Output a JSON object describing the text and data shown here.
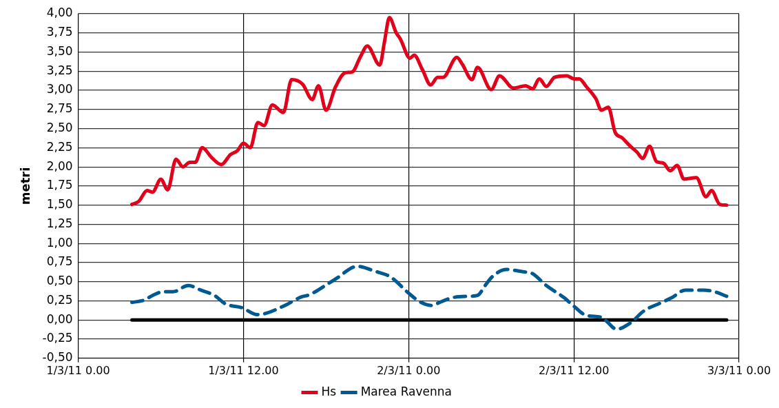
{
  "chart_data": {
    "type": "line",
    "ylabel": "metri",
    "xlim": [
      "--03-01T00:00",
      "--03-03T00:00"
    ],
    "xticks": [
      {
        "value": "--03-01T00:00",
        "label": "1/3/11 0.00"
      },
      {
        "value": "--03-01T12:00",
        "label": "1/3/11 12.00"
      },
      {
        "value": "--03-02T00:00",
        "label": "2/3/11 0.00"
      },
      {
        "value": "--03-02T12:00",
        "label": "2/3/11 12.00"
      },
      {
        "value": "--03-03T00:00",
        "label": "3/3/11 0.00"
      }
    ],
    "ylim": [
      -0.5,
      4
    ],
    "yticks": [
      {
        "value": -0.5,
        "label": "-0,50"
      },
      {
        "value": -0.25,
        "label": "-0,25"
      },
      {
        "value": 0,
        "label": "0,00"
      },
      {
        "value": 0.25,
        "label": "0,25"
      },
      {
        "value": 0.5,
        "label": "0,50"
      },
      {
        "value": 0.75,
        "label": "0,75"
      },
      {
        "value": 1,
        "label": "1,00"
      },
      {
        "value": 1.25,
        "label": "1,25"
      },
      {
        "value": 1.5,
        "label": "1,50"
      },
      {
        "value": 1.75,
        "label": "1,75"
      },
      {
        "value": 2,
        "label": "2,00"
      },
      {
        "value": 2.25,
        "label": "2,25"
      },
      {
        "value": 2.5,
        "label": "2,50"
      },
      {
        "value": 2.75,
        "label": "2,75"
      },
      {
        "value": 3,
        "label": "3,00"
      },
      {
        "value": 3.25,
        "label": "3,25"
      },
      {
        "value": 3.5,
        "label": "3,50"
      },
      {
        "value": 3.75,
        "label": "3,75"
      },
      {
        "value": 4,
        "label": "4,00"
      }
    ],
    "grid": true,
    "legend": "bottom",
    "marker": "none",
    "series": [
      {
        "name": "Hs",
        "color": "#e2001a",
        "line_style": "solid",
        "x": [
          "--03-01T03:54",
          "--03-01T04:24",
          "--03-01T05:00",
          "--03-01T05:24",
          "--03-01T06:00",
          "--03-01T06:30",
          "--03-01T07:06",
          "--03-01T07:36",
          "--03-01T08:06",
          "--03-01T08:30",
          "--03-01T09:00",
          "--03-01T09:42",
          "--03-01T10:24",
          "--03-01T11:03",
          "--03-01T11:33",
          "--03-01T12:00",
          "--03-01T12:30",
          "--03-01T13:03",
          "--03-01T13:30",
          "--03-01T14:06",
          "--03-01T14:54",
          "--03-01T15:30",
          "--03-01T16:18",
          "--03-01T17:00",
          "--03-01T17:27",
          "--03-01T18:00",
          "--03-01T18:42",
          "--03-01T19:24",
          "--03-01T19:54",
          "--03-01T20:30",
          "--03-01T21:00",
          "--03-01T21:54",
          "--03-01T22:15",
          "--03-01T22:36",
          "--03-01T23:06",
          "--03-01T23:24",
          "--03-02T00:06",
          "--03-02T00:24",
          "--03-02T01:00",
          "--03-02T01:36",
          "--03-02T02:06",
          "--03-02T02:30",
          "--03-02T03:30",
          "--03-02T03:54",
          "--03-02T04:36",
          "--03-02T05:00",
          "--03-02T06:00",
          "--03-02T06:36",
          "--03-02T07:36",
          "--03-02T08:30",
          "--03-02T09:00",
          "--03-02T09:30",
          "--03-02T10:00",
          "--03-02T10:36",
          "--03-02T11:30",
          "--03-02T12:00",
          "--03-02T12:24",
          "--03-02T12:54",
          "--03-02T13:36",
          "--03-02T14:00",
          "--03-02T14:30",
          "--03-02T15:00",
          "--03-02T15:30",
          "--03-02T16:06",
          "--03-02T16:36",
          "--03-02T17:00",
          "--03-02T17:30",
          "--03-02T18:00",
          "--03-02T18:30",
          "--03-02T19:00",
          "--03-02T19:30",
          "--03-02T20:00",
          "--03-02T20:54",
          "--03-02T21:36",
          "--03-02T22:00",
          "--03-02T22:36",
          "--03-02T23:06"
        ],
        "values": [
          1.51,
          1.55,
          1.69,
          1.67,
          1.84,
          1.7,
          2.1,
          2.0,
          2.06,
          2.06,
          2.25,
          2.12,
          2.03,
          2.16,
          2.21,
          2.31,
          2.25,
          2.58,
          2.54,
          2.81,
          2.71,
          3.14,
          3.08,
          2.88,
          3.06,
          2.74,
          3.05,
          3.23,
          3.24,
          3.44,
          3.58,
          3.33,
          3.64,
          3.95,
          3.75,
          3.67,
          3.42,
          3.46,
          3.27,
          3.07,
          3.17,
          3.17,
          3.43,
          3.34,
          3.14,
          3.3,
          3.01,
          3.19,
          3.03,
          3.06,
          3.02,
          3.15,
          3.05,
          3.17,
          3.19,
          3.15,
          3.15,
          3.05,
          2.89,
          2.74,
          2.78,
          2.45,
          2.38,
          2.27,
          2.19,
          2.11,
          2.27,
          2.07,
          2.05,
          1.95,
          2.02,
          1.84,
          1.86,
          1.61,
          1.69,
          1.51,
          1.5
        ]
      },
      {
        "name": "Marea Ravenna",
        "color": "#005a91",
        "line_style": "dashed",
        "x": [
          "--03-01T03:54",
          "--03-01T04:48",
          "--03-01T05:24",
          "--03-01T06:12",
          "--03-01T06:54",
          "--03-01T08:00",
          "--03-01T08:54",
          "--03-01T09:54",
          "--03-01T10:42",
          "--03-01T11:54",
          "--03-01T13:00",
          "--03-01T13:30",
          "--03-01T14:54",
          "--03-01T16:12",
          "--03-01T16:48",
          "--03-01T18:12",
          "--03-01T18:54",
          "--03-01T19:51",
          "--03-01T20:18",
          "--03-01T21:30",
          "--03-01T22:42",
          "--03-02T00:00",
          "--03-02T00:48",
          "--03-02T01:42",
          "--03-02T02:00",
          "--03-02T03:09",
          "--03-02T04:30",
          "--03-02T05:00",
          "--03-02T05:36",
          "--03-02T06:06",
          "--03-02T07:06",
          "--03-02T08:18",
          "--03-02T08:57",
          "--03-02T10:00",
          "--03-02T11:18",
          "--03-02T12:00",
          "--03-02T12:54",
          "--03-02T14:06",
          "--03-02T14:24",
          "--03-02T15:06",
          "--03-02T16:06",
          "--03-02T17:06",
          "--03-02T18:24",
          "--03-02T19:06",
          "--03-02T20:06",
          "--03-02T21:24",
          "--03-02T22:12",
          "--03-02T23:06"
        ],
        "values": [
          0.23,
          0.26,
          0.32,
          0.37,
          0.37,
          0.45,
          0.39,
          0.32,
          0.21,
          0.16,
          0.07,
          0.08,
          0.18,
          0.3,
          0.33,
          0.48,
          0.56,
          0.68,
          0.7,
          0.64,
          0.56,
          0.35,
          0.24,
          0.19,
          0.21,
          0.29,
          0.31,
          0.32,
          0.46,
          0.57,
          0.66,
          0.63,
          0.61,
          0.45,
          0.29,
          0.18,
          0.06,
          0.03,
          -0.02,
          -0.12,
          -0.04,
          0.12,
          0.23,
          0.29,
          0.39,
          0.39,
          0.37,
          0.31
        ]
      },
      {
        "color": "#000000",
        "line_style": "solid",
        "x": [
          "--03-01T03:54",
          "--03-02T23:06"
        ],
        "values": [
          0,
          0
        ]
      }
    ]
  }
}
